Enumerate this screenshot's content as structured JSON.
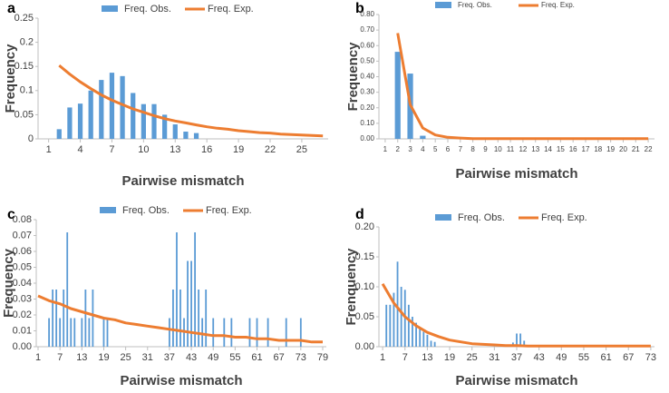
{
  "chart_data": [
    {
      "type": "bar-line",
      "panel": "a",
      "x_label": "Pairwise mismatch",
      "y_label": "Frequency",
      "xlim": [
        0,
        27.5
      ],
      "xticks": [
        1,
        4,
        7,
        10,
        13,
        16,
        19,
        22,
        25
      ],
      "ylim": [
        0,
        0.25
      ],
      "yticks": [
        0,
        0.05,
        0.1,
        0.15,
        0.2,
        0.25
      ],
      "series": [
        {
          "name": "Freq. Obs.",
          "kind": "bar",
          "color": "#5b9bd5",
          "x": [
            2,
            3,
            4,
            5,
            6,
            7,
            8,
            9,
            10,
            11,
            12,
            13,
            14,
            15
          ],
          "values": [
            0.02,
            0.065,
            0.073,
            0.1,
            0.122,
            0.137,
            0.13,
            0.095,
            0.072,
            0.072,
            0.05,
            0.03,
            0.015,
            0.012
          ]
        },
        {
          "name": "Freq. Exp.",
          "kind": "line",
          "color": "#ed7d31",
          "x": [
            2,
            3,
            4,
            5,
            6,
            7,
            8,
            9,
            10,
            11,
            12,
            13,
            14,
            15,
            16,
            17,
            18,
            19,
            20,
            21,
            22,
            23,
            24,
            25,
            26,
            27
          ],
          "values": [
            0.152,
            0.134,
            0.118,
            0.104,
            0.091,
            0.08,
            0.071,
            0.062,
            0.055,
            0.048,
            0.042,
            0.037,
            0.033,
            0.029,
            0.025,
            0.022,
            0.02,
            0.017,
            0.015,
            0.013,
            0.012,
            0.01,
            0.009,
            0.008,
            0.007,
            0.006
          ]
        }
      ]
    },
    {
      "type": "bar-line",
      "panel": "b",
      "x_label": "Pairwise mismatch",
      "y_label": "Frequency",
      "xlim": [
        0.5,
        22.5
      ],
      "xticks": [
        1,
        2,
        3,
        4,
        5,
        6,
        7,
        8,
        9,
        10,
        11,
        12,
        13,
        14,
        15,
        16,
        17,
        18,
        19,
        20,
        21,
        22
      ],
      "ylim": [
        0,
        0.8
      ],
      "yticks": [
        {
          "value": 0,
          "label": "0.00"
        },
        {
          "value": 0.1,
          "label": "0.10"
        },
        {
          "value": 0.2,
          "label": "0.20"
        },
        {
          "value": 0.3,
          "label": "0.30"
        },
        {
          "value": 0.4,
          "label": "0.40"
        },
        {
          "value": 0.5,
          "label": "0.50"
        },
        {
          "value": 0.6,
          "label": "0.60"
        },
        {
          "value": 0.7,
          "label": "0.70"
        },
        {
          "value": 0.8,
          "label": "0.80"
        }
      ],
      "series": [
        {
          "name": "Freq. Obs.",
          "kind": "bar",
          "color": "#5b9bd5",
          "x": [
            2,
            3,
            4
          ],
          "values": [
            0.56,
            0.42,
            0.02
          ]
        },
        {
          "name": "Freq. Exp.",
          "kind": "line",
          "color": "#ed7d31",
          "x": [
            2,
            3,
            4,
            5,
            6,
            7,
            8,
            9,
            10,
            11,
            12,
            13,
            14,
            15,
            16,
            17,
            18,
            19,
            20,
            21,
            22
          ],
          "values": [
            0.68,
            0.22,
            0.07,
            0.025,
            0.01,
            0.005,
            0.002,
            0.002,
            0.002,
            0.002,
            0.002,
            0.002,
            0.002,
            0.002,
            0.002,
            0.002,
            0.002,
            0.002,
            0.002,
            0.002,
            0.002
          ]
        }
      ]
    },
    {
      "type": "bar-line",
      "panel": "c",
      "x_label": "Pairwise mismatch",
      "y_label": "Frequency",
      "xlim": [
        0.5,
        80
      ],
      "xticks": [
        1,
        7,
        13,
        19,
        25,
        31,
        37,
        43,
        49,
        55,
        61,
        67,
        73,
        79
      ],
      "ylim": [
        0,
        0.08
      ],
      "yticks": [
        {
          "value": 0,
          "label": "0.00"
        },
        {
          "value": 0.01,
          "label": "0.01"
        },
        {
          "value": 0.02,
          "label": "0.02"
        },
        {
          "value": 0.03,
          "label": "0.03"
        },
        {
          "value": 0.04,
          "label": "0.04"
        },
        {
          "value": 0.05,
          "label": "0.05"
        },
        {
          "value": 0.06,
          "label": "0.06"
        },
        {
          "value": 0.07,
          "label": "0.07"
        },
        {
          "value": 0.08,
          "label": "0.08"
        }
      ],
      "series": [
        {
          "name": "Freq. Obs.",
          "kind": "bar",
          "color": "#5b9bd5",
          "x": [
            4,
            5,
            6,
            7,
            8,
            9,
            10,
            11,
            13,
            14,
            15,
            16,
            19,
            20,
            37,
            38,
            39,
            40,
            41,
            42,
            43,
            44,
            45,
            46,
            47,
            49,
            52,
            54,
            59,
            61,
            64,
            69,
            73
          ],
          "values": [
            0.018,
            0.036,
            0.036,
            0.018,
            0.036,
            0.072,
            0.018,
            0.018,
            0.018,
            0.036,
            0.018,
            0.036,
            0.018,
            0.018,
            0.018,
            0.036,
            0.072,
            0.036,
            0.018,
            0.054,
            0.054,
            0.072,
            0.036,
            0.018,
            0.036,
            0.018,
            0.018,
            0.018,
            0.018,
            0.018,
            0.018,
            0.018,
            0.018
          ]
        },
        {
          "name": "Freq. Exp.",
          "kind": "line",
          "color": "#ed7d31",
          "x": [
            1,
            4,
            7,
            10,
            13,
            16,
            19,
            22,
            25,
            28,
            31,
            34,
            37,
            40,
            43,
            46,
            49,
            52,
            55,
            58,
            61,
            64,
            67,
            70,
            73,
            76,
            79
          ],
          "values": [
            0.032,
            0.029,
            0.027,
            0.024,
            0.022,
            0.02,
            0.018,
            0.017,
            0.015,
            0.014,
            0.013,
            0.012,
            0.011,
            0.01,
            0.009,
            0.008,
            0.007,
            0.007,
            0.006,
            0.006,
            0.005,
            0.005,
            0.004,
            0.004,
            0.004,
            0.003,
            0.003
          ]
        }
      ]
    },
    {
      "type": "bar-line",
      "panel": "d",
      "x_label": "Pairwise mismatch",
      "y_label": "Frenquency",
      "xlim": [
        0,
        74
      ],
      "xticks": [
        1,
        7,
        13,
        19,
        25,
        31,
        37,
        43,
        49,
        55,
        61,
        67,
        73
      ],
      "ylim": [
        0,
        0.2
      ],
      "yticks": [
        {
          "value": 0,
          "label": "0.00"
        },
        {
          "value": 0.05,
          "label": "0.05"
        },
        {
          "value": 0.1,
          "label": "0.10"
        },
        {
          "value": 0.15,
          "label": "0.15"
        },
        {
          "value": 0.2,
          "label": "0.20"
        }
      ],
      "series": [
        {
          "name": "Freq. Obs.",
          "kind": "bar",
          "color": "#5b9bd5",
          "x": [
            2,
            3,
            4,
            5,
            6,
            7,
            8,
            9,
            10,
            11,
            12,
            13,
            14,
            15,
            36,
            37,
            38,
            39
          ],
          "values": [
            0.07,
            0.07,
            0.09,
            0.142,
            0.1,
            0.095,
            0.07,
            0.05,
            0.04,
            0.03,
            0.025,
            0.02,
            0.01,
            0.008,
            0.007,
            0.022,
            0.022,
            0.01
          ]
        },
        {
          "name": "Freq. Exp.",
          "kind": "line",
          "color": "#ed7d31",
          "x": [
            1,
            4,
            7,
            10,
            13,
            16,
            19,
            22,
            25,
            28,
            31,
            34,
            37,
            40,
            43,
            46,
            49,
            52,
            55,
            58,
            61,
            64,
            67,
            70,
            73
          ],
          "values": [
            0.105,
            0.073,
            0.05,
            0.035,
            0.024,
            0.017,
            0.011,
            0.008,
            0.005,
            0.004,
            0.003,
            0.002,
            0.002,
            0.001,
            0.001,
            0.001,
            0.001,
            0.001,
            0.001,
            0.001,
            0.001,
            0.001,
            0.001,
            0.001,
            0.001
          ]
        }
      ]
    }
  ]
}
